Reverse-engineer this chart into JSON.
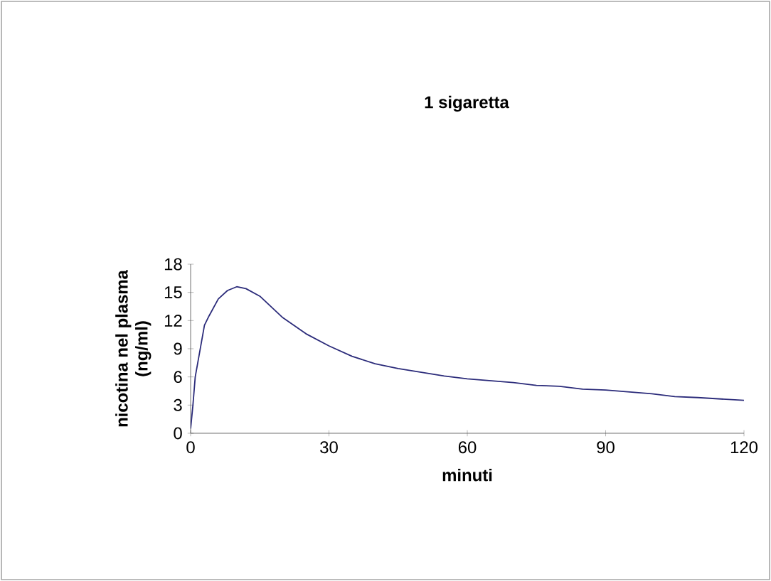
{
  "chart_data": {
    "type": "line",
    "title": "1 sigaretta",
    "xlabel": "minuti",
    "ylabel": "nicotina nel plasma\n(ng/ml)",
    "xlim": [
      0,
      120
    ],
    "xticks": [
      0,
      30,
      60,
      90,
      120
    ],
    "ylim": [
      0,
      18
    ],
    "yticks": [
      0,
      3,
      6,
      9,
      12,
      15,
      18
    ],
    "grid": false,
    "marker": "none",
    "line_style": "solid",
    "series": [
      {
        "color": "#2b2b7a",
        "x": [
          0,
          0.5,
          1,
          3,
          4,
          6,
          8,
          10,
          12,
          15,
          20,
          25,
          30,
          35,
          40,
          45,
          50,
          55,
          60,
          70,
          75,
          80,
          85,
          90,
          100,
          105,
          110,
          120
        ],
        "values": [
          0.5,
          3,
          6,
          11.5,
          12.5,
          14.3,
          15.2,
          15.6,
          15.4,
          14.6,
          12.3,
          10.6,
          9.3,
          8.2,
          7.4,
          6.9,
          6.5,
          6.1,
          5.8,
          5.4,
          5.1,
          5.0,
          4.7,
          4.6,
          4.2,
          3.9,
          3.8,
          3.5
        ]
      }
    ]
  }
}
